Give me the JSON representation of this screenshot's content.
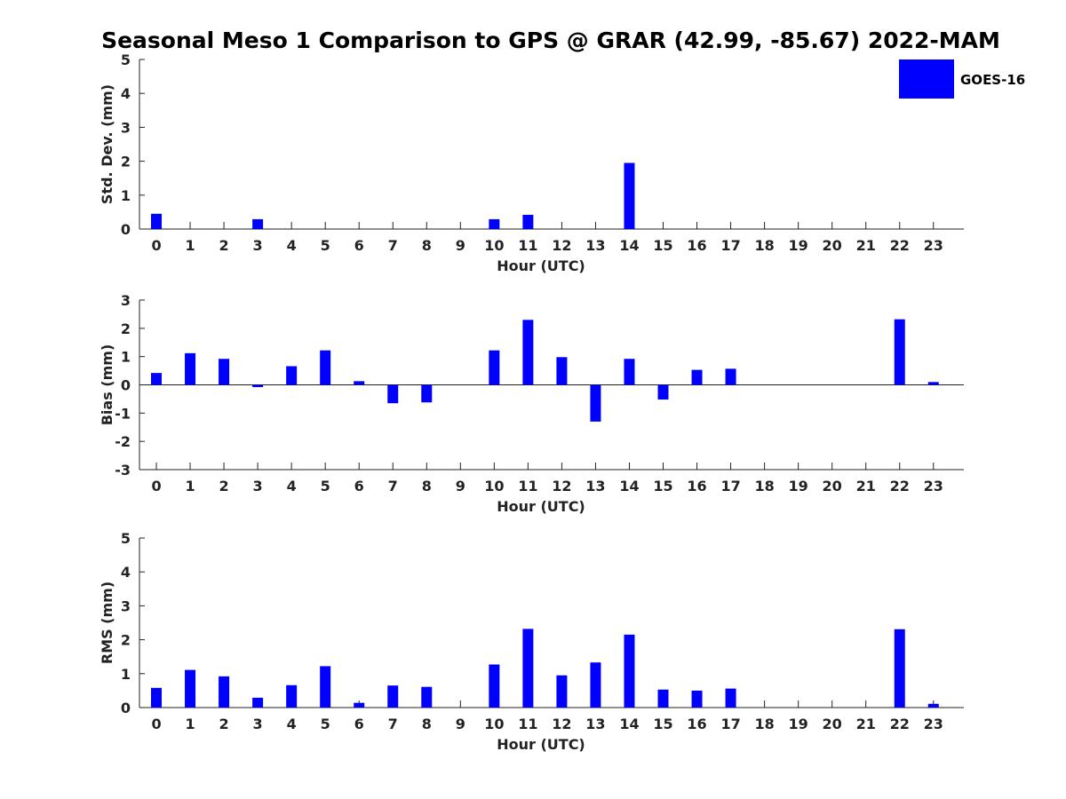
{
  "chart_data": {
    "title": "Seasonal Meso 1 Comparison to GPS @ GRAR (42.99, -85.67) 2022-MAM",
    "legend": {
      "label": "GOES-16",
      "color": "#0000ff",
      "placement": "top-right"
    },
    "bar_color": "#0000ff",
    "panels": [
      {
        "type": "bar",
        "xlabel": "Hour (UTC)",
        "ylabel": "Std. Dev. (mm)",
        "ylim": [
          0,
          5
        ],
        "yticks": [
          0,
          1,
          2,
          3,
          4,
          5
        ],
        "categories": [
          "0",
          "1",
          "2",
          "3",
          "4",
          "5",
          "6",
          "7",
          "8",
          "9",
          "10",
          "11",
          "12",
          "13",
          "14",
          "15",
          "16",
          "17",
          "18",
          "19",
          "20",
          "21",
          "22",
          "23"
        ],
        "values": [
          0.45,
          null,
          null,
          0.29,
          null,
          null,
          null,
          null,
          null,
          null,
          0.29,
          0.42,
          null,
          null,
          1.95,
          null,
          null,
          null,
          null,
          null,
          null,
          null,
          null,
          null
        ]
      },
      {
        "type": "bar",
        "xlabel": "Hour (UTC)",
        "ylabel": "Bias (mm)",
        "ylim": [
          -3,
          3
        ],
        "yticks": [
          -3,
          -2,
          -1,
          0,
          1,
          2,
          3
        ],
        "zero_line": true,
        "categories": [
          "0",
          "1",
          "2",
          "3",
          "4",
          "5",
          "6",
          "7",
          "8",
          "9",
          "10",
          "11",
          "12",
          "13",
          "14",
          "15",
          "16",
          "17",
          "18",
          "19",
          "20",
          "21",
          "22",
          "23"
        ],
        "values": [
          0.42,
          1.12,
          0.92,
          -0.08,
          0.66,
          1.22,
          0.13,
          -0.65,
          -0.62,
          null,
          1.22,
          2.3,
          0.98,
          -1.3,
          0.92,
          -0.52,
          0.53,
          0.57,
          null,
          null,
          null,
          null,
          2.32,
          0.1
        ]
      },
      {
        "type": "bar",
        "xlabel": "Hour (UTC)",
        "ylabel": "RMS (mm)",
        "ylim": [
          0,
          5
        ],
        "yticks": [
          0,
          1,
          2,
          3,
          4,
          5
        ],
        "categories": [
          "0",
          "1",
          "2",
          "3",
          "4",
          "5",
          "6",
          "7",
          "8",
          "9",
          "10",
          "11",
          "12",
          "13",
          "14",
          "15",
          "16",
          "17",
          "18",
          "19",
          "20",
          "21",
          "22",
          "23"
        ],
        "values": [
          0.58,
          1.11,
          0.92,
          0.29,
          0.66,
          1.22,
          0.14,
          0.65,
          0.61,
          null,
          1.27,
          2.32,
          0.95,
          1.33,
          2.15,
          0.53,
          0.5,
          0.56,
          null,
          null,
          null,
          null,
          2.31,
          0.11
        ]
      }
    ]
  }
}
